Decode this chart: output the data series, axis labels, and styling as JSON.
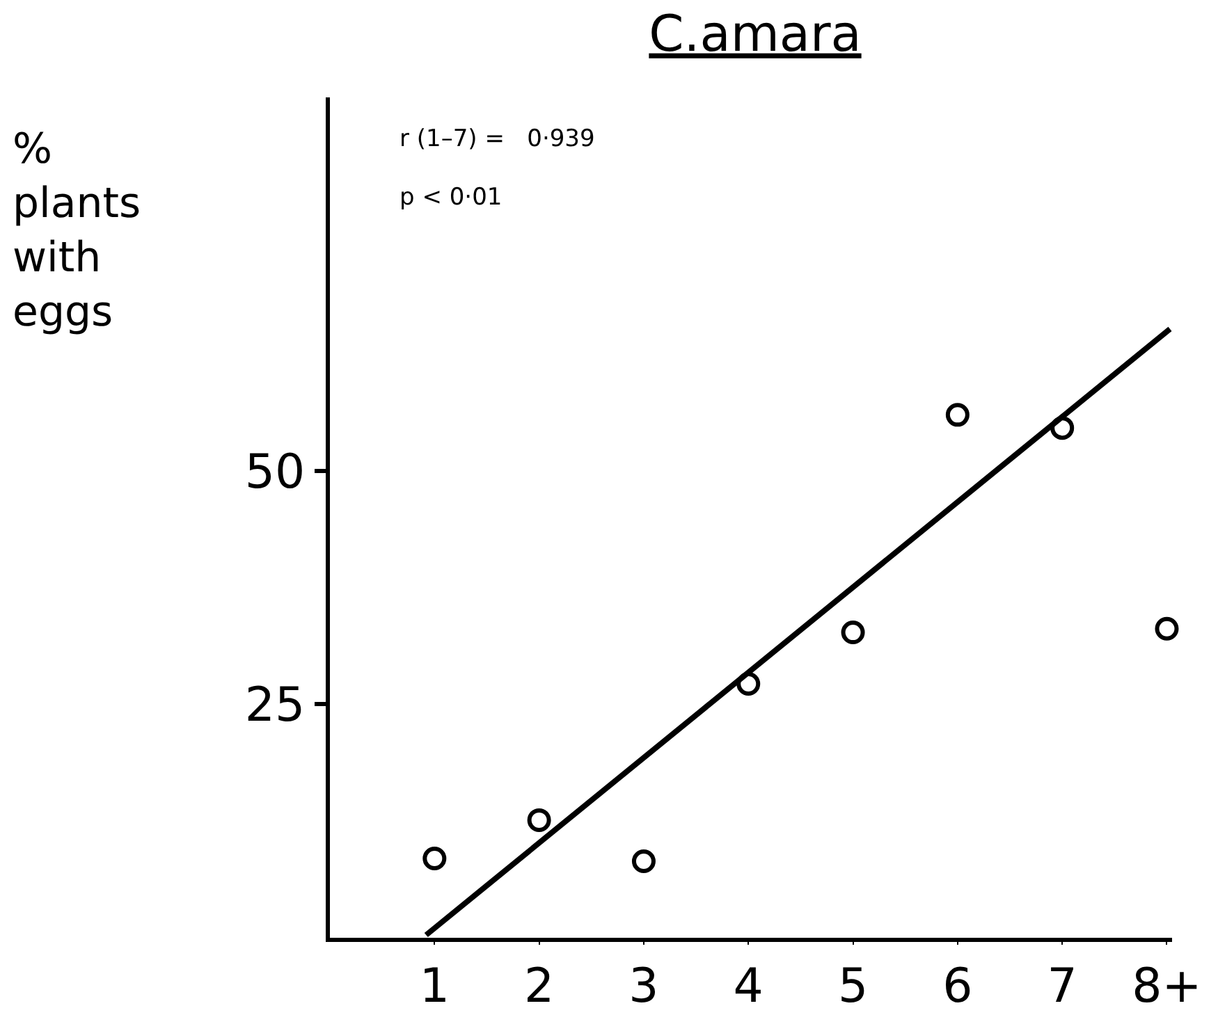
{
  "chart_data": {
    "type": "scatter",
    "title": "C.amara",
    "ylabel": "%\nplants\nwith\neggs",
    "annotations": [
      "r (1–7) =   0·939",
      "p < 0·01"
    ],
    "series": [
      {
        "color": "#000000",
        "marker": "circle",
        "x": [
          1,
          2,
          3,
          4,
          5,
          6,
          7,
          8
        ],
        "values": [
          8.5,
          12.6,
          8.2,
          27.2,
          32.7,
          56.0,
          54.6,
          33.1
        ]
      },
      {
        "type": "line",
        "color": "#000000",
        "marker": "none",
        "line_style": "solid",
        "x": [
          0.92,
          8.03
        ],
        "values": [
          0.3,
          65.2
        ]
      }
    ],
    "xlim": [
      0,
      8.05
    ],
    "xticks": [
      1,
      2,
      3,
      4,
      5,
      6,
      7,
      {
        "value": 8,
        "label": "8+"
      }
    ],
    "ylim": [
      0,
      90
    ],
    "yticks": [
      25,
      50
    ]
  }
}
